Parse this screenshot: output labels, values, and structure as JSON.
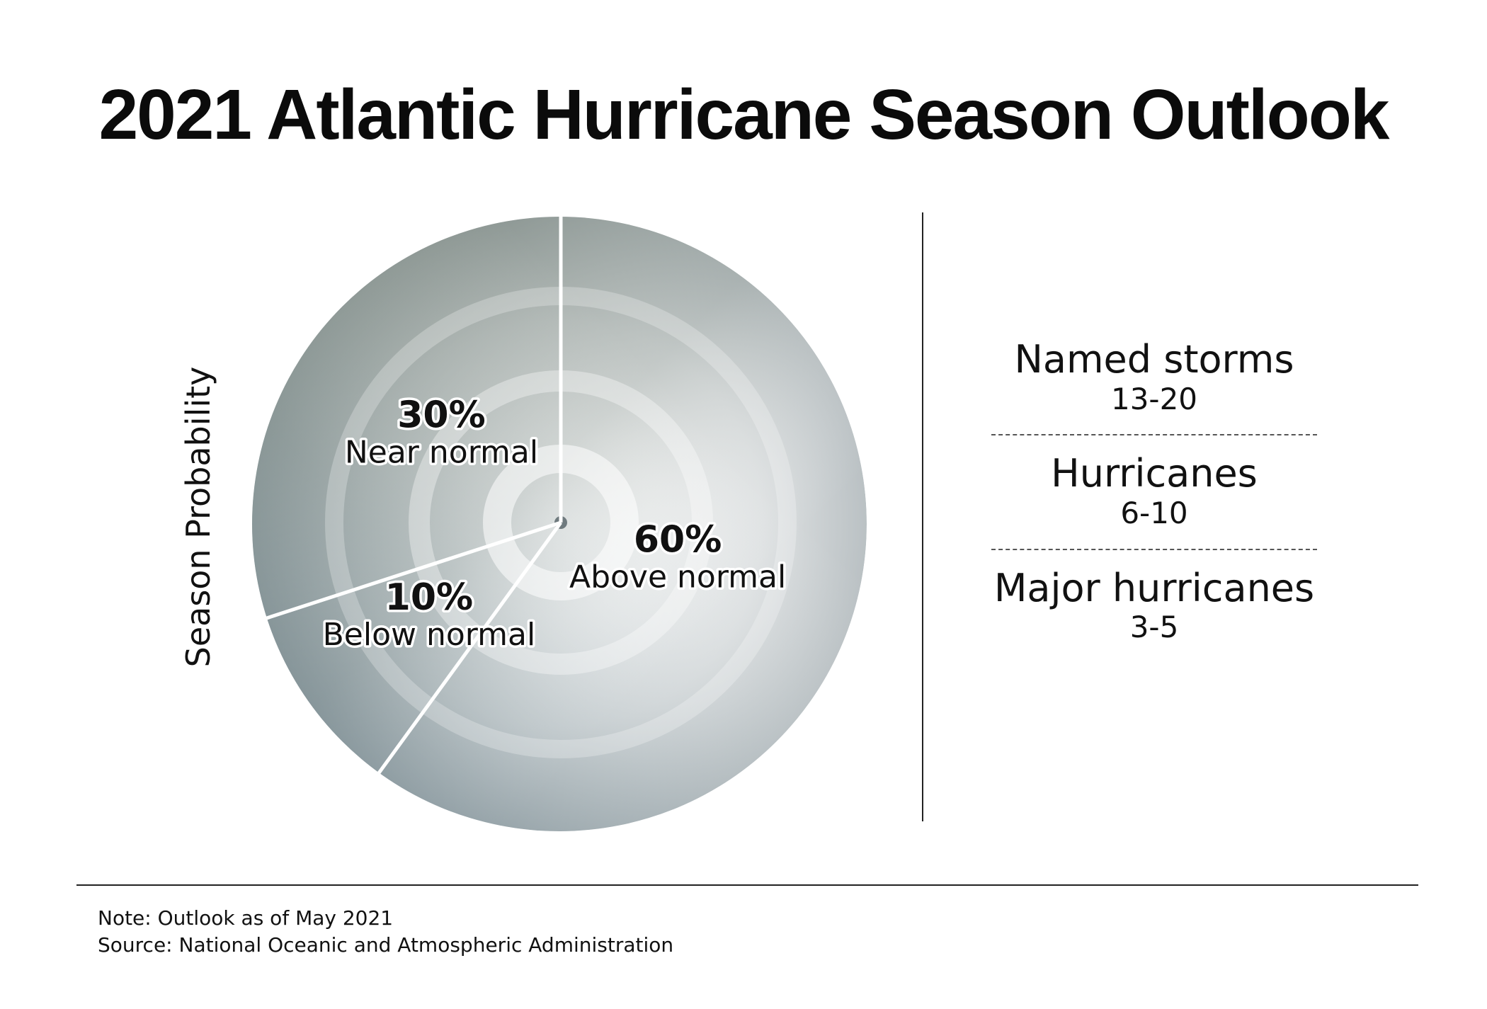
{
  "chart_data": {
    "type": "pie",
    "title": "2021 Atlantic Hurricane Season Outlook",
    "ylabel": "Season Probability",
    "slices": [
      {
        "label": "Above normal",
        "value": 60,
        "display": "60%"
      },
      {
        "label": "Below normal",
        "value": 10,
        "display": "10%"
      },
      {
        "label": "Near normal",
        "value": 30,
        "display": "30%"
      }
    ],
    "start": "top",
    "direction": "clockwise"
  },
  "stats": [
    {
      "label": "Named storms",
      "value": "13-20"
    },
    {
      "label": "Hurricanes",
      "value": "6-10"
    },
    {
      "label": "Major hurricanes",
      "value": "3-5"
    }
  ],
  "footer": {
    "note": "Note: Outlook as of May 2021",
    "source": "Source: National Oceanic and Atmospheric Administration"
  },
  "colors": {
    "background": "#ffffff",
    "text": "#111111",
    "slice_divider": "#ffffff"
  }
}
